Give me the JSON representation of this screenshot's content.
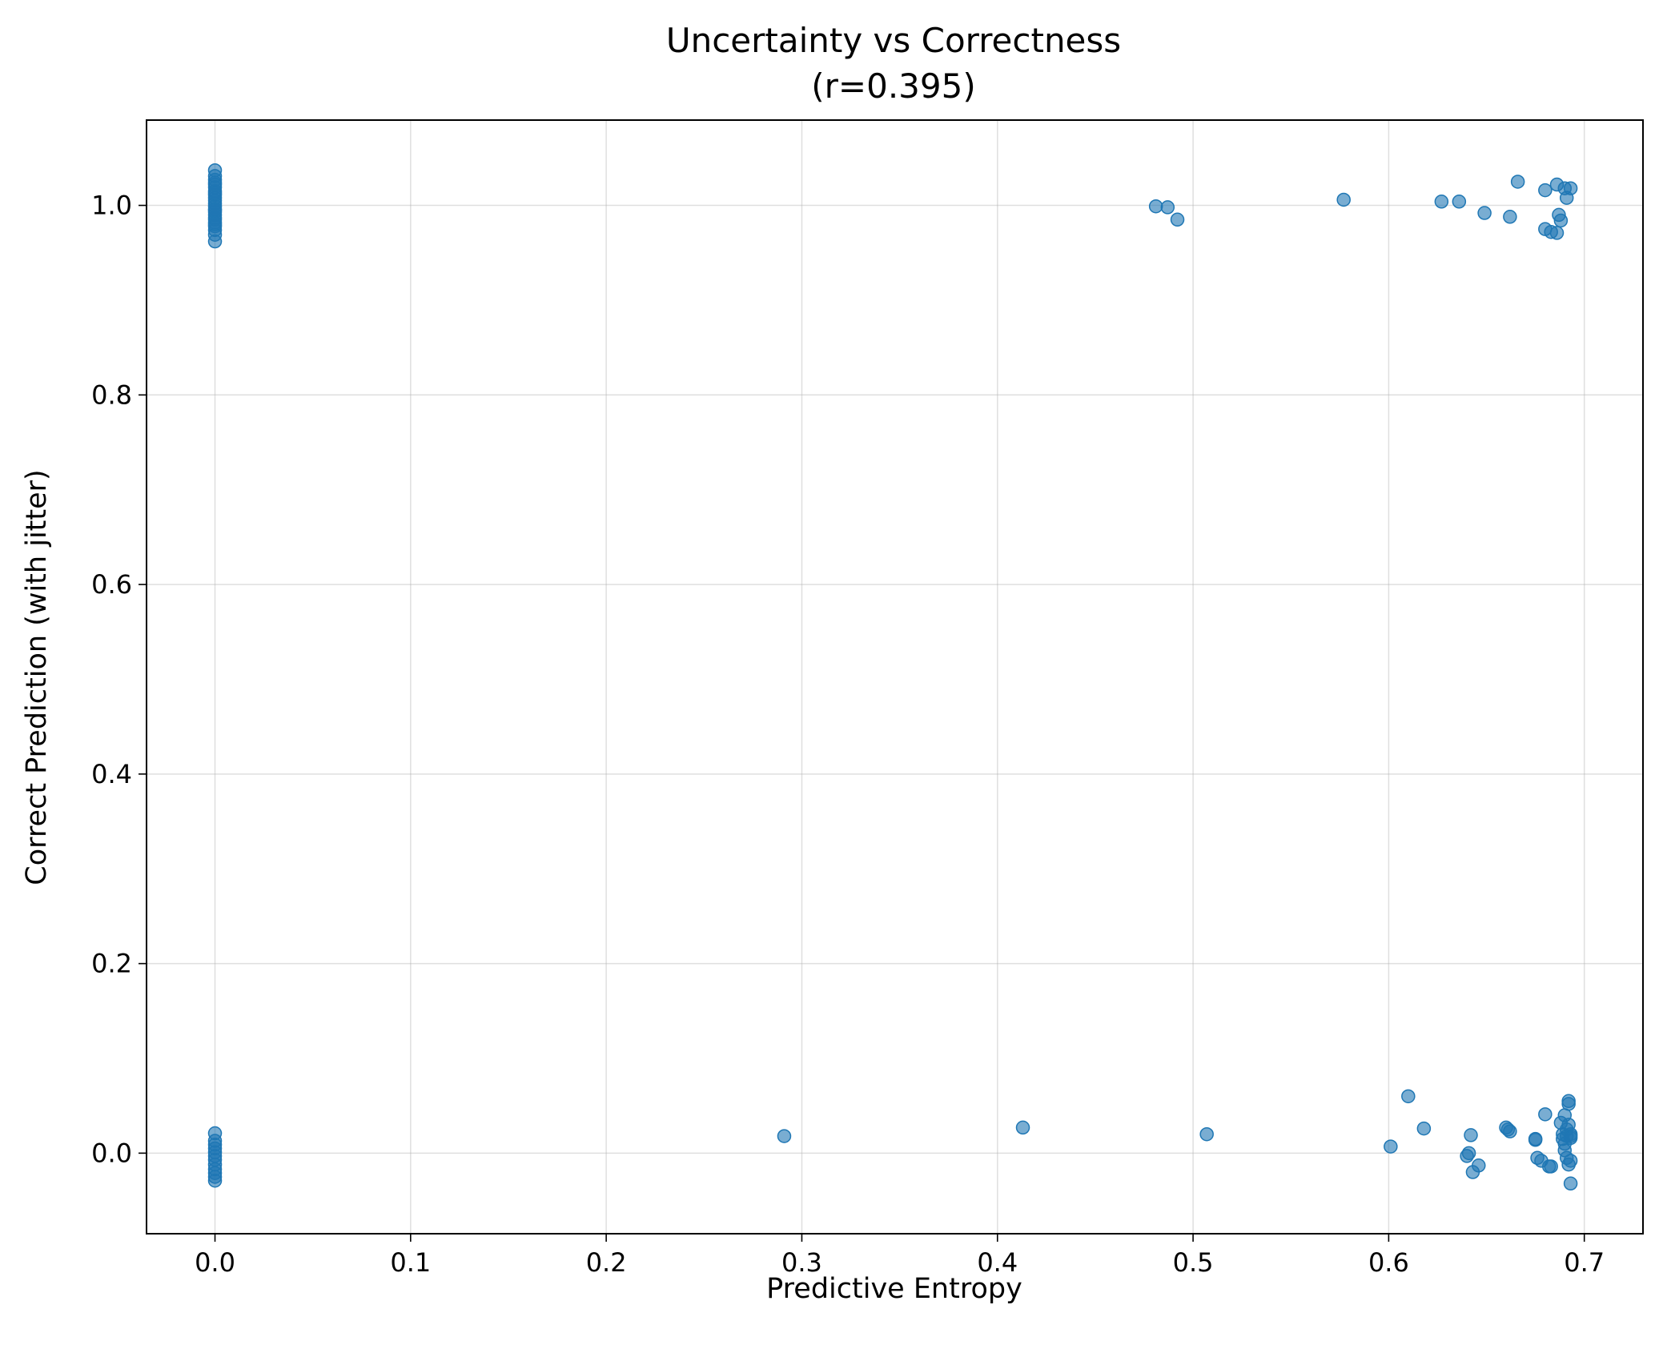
{
  "chart_data": {
    "type": "scatter",
    "title": "Uncertainty vs Correctness",
    "subtitle": "(r=0.395)",
    "xlabel": "Predictive Entropy",
    "ylabel": "Correct Prediction (with jitter)",
    "xlim": [
      -0.035,
      0.73
    ],
    "ylim": [
      -0.085,
      1.09
    ],
    "xticks": [
      0.0,
      0.1,
      0.2,
      0.3,
      0.4,
      0.5,
      0.6,
      0.7
    ],
    "xtick_labels": [
      "0.0",
      "0.1",
      "0.2",
      "0.3",
      "0.4",
      "0.5",
      "0.6",
      "0.7"
    ],
    "yticks": [
      0.0,
      0.2,
      0.4,
      0.6,
      0.8,
      1.0
    ],
    "ytick_labels": [
      "0.0",
      "0.2",
      "0.4",
      "0.6",
      "0.8",
      "1.0"
    ],
    "grid": true,
    "color": "#1f77b4",
    "x": [
      0.0,
      0.0,
      0.0,
      0.0,
      0.0,
      0.0,
      0.0,
      0.0,
      0.0,
      0.0,
      0.0,
      0.0,
      0.0,
      0.0,
      0.0,
      0.0,
      0.0,
      0.0,
      0.0,
      0.0,
      0.0,
      0.0,
      0.0,
      0.0,
      0.0,
      0.481,
      0.487,
      0.492,
      0.577,
      0.627,
      0.636,
      0.649,
      0.662,
      0.666,
      0.68,
      0.68,
      0.683,
      0.686,
      0.686,
      0.687,
      0.688,
      0.69,
      0.691,
      0.693,
      0.0,
      0.0,
      0.0,
      0.0,
      0.0,
      0.0,
      0.0,
      0.0,
      0.0,
      0.0,
      0.0,
      0.0,
      0.291,
      0.413,
      0.507,
      0.601,
      0.61,
      0.618,
      0.64,
      0.641,
      0.642,
      0.643,
      0.646,
      0.66,
      0.661,
      0.662,
      0.675,
      0.675,
      0.676,
      0.678,
      0.68,
      0.682,
      0.683,
      0.688,
      0.689,
      0.689,
      0.69,
      0.69,
      0.69,
      0.691,
      0.691,
      0.691,
      0.692,
      0.692,
      0.692,
      0.692,
      0.693,
      0.693,
      0.693,
      0.693,
      0.693
    ],
    "y": [
      1.037,
      1.031,
      1.027,
      1.022,
      1.019,
      1.015,
      1.011,
      1.008,
      1.005,
      1.002,
      0.999,
      0.996,
      0.993,
      0.99,
      0.987,
      0.985,
      0.982,
      0.978,
      0.974,
      0.969,
      0.962,
      1.024,
      1.013,
      0.995,
      0.98,
      0.999,
      0.998,
      0.985,
      1.006,
      1.004,
      1.004,
      0.992,
      0.988,
      1.025,
      0.975,
      1.016,
      0.972,
      1.022,
      0.971,
      0.99,
      0.984,
      1.018,
      1.008,
      1.018,
      0.021,
      0.013,
      0.009,
      0.005,
      0.001,
      -0.003,
      -0.007,
      -0.012,
      -0.017,
      -0.021,
      -0.025,
      -0.029,
      0.018,
      0.027,
      0.02,
      0.007,
      0.06,
      0.026,
      -0.003,
      0.0,
      0.019,
      -0.02,
      -0.013,
      0.027,
      0.025,
      0.023,
      0.015,
      0.014,
      -0.005,
      -0.008,
      0.041,
      -0.014,
      -0.014,
      0.032,
      0.02,
      0.015,
      0.04,
      0.01,
      0.003,
      0.025,
      0.018,
      -0.005,
      0.055,
      0.052,
      0.03,
      -0.012,
      0.02,
      0.018,
      0.016,
      -0.008,
      -0.032
    ]
  }
}
